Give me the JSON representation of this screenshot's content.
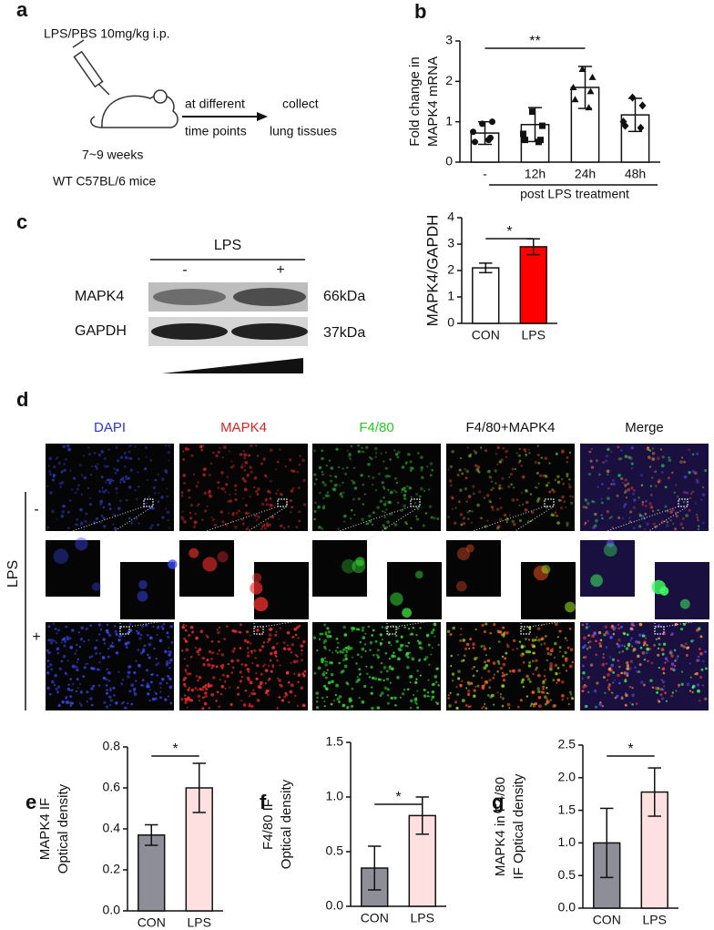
{
  "panel_labels": [
    "a",
    "b",
    "c",
    "d",
    "e",
    "f",
    "g"
  ],
  "schematic": {
    "injection": "LPS/PBS 10mg/kg i.p.",
    "arrow_top": "at different",
    "arrow_bottom": "time points",
    "collect_top": "collect",
    "collect_bottom": "lung tissues",
    "age": "7~9  weeks",
    "strain": "WT C57BL/6 mice"
  },
  "blot": {
    "treatment": "LPS",
    "lanes": [
      "-",
      "+"
    ],
    "proteins": [
      "MAPK4",
      "GAPDH"
    ],
    "sizes": [
      "66kDa",
      "37kDa"
    ]
  },
  "imaging": {
    "channels": [
      "DAPI",
      "MAPK4",
      "F4/80",
      "F4/80+MAPK4",
      "Merge"
    ],
    "row_label": "LPS",
    "rows": [
      "-",
      "+"
    ]
  },
  "chart_data": [
    {
      "type": "bar",
      "ylabel": [
        "Fold change in",
        "MAPK4 mRNA"
      ],
      "xlabel": "post LPS treatment",
      "categories": [
        "-",
        "12h",
        "24h",
        "48h"
      ],
      "values": [
        0.72,
        0.93,
        1.85,
        1.17
      ],
      "errors": [
        0.28,
        0.42,
        0.52,
        0.41
      ],
      "points": [
        [
          0.95,
          1.0,
          0.75,
          0.6,
          0.5,
          0.55
        ],
        [
          1.25,
          0.9,
          0.7,
          0.55,
          0.55,
          0.5
        ],
        [
          2.3,
          2.1,
          1.85,
          1.75,
          1.55,
          1.35
        ],
        [
          1.6,
          1.4,
          1.0,
          0.85,
          0.9
        ]
      ],
      "colors": [
        "#ffffff",
        "#ffffff",
        "#ffffff",
        "#ffffff"
      ],
      "ylim": [
        0,
        3
      ],
      "yticks": [
        0,
        1,
        2,
        3
      ],
      "significance": "**"
    },
    {
      "type": "bar",
      "ylabel": [
        "MAPK4/GAPDH"
      ],
      "categories": [
        "CON",
        "LPS"
      ],
      "values": [
        2.1,
        2.9
      ],
      "errors": [
        0.18,
        0.3
      ],
      "colors": [
        "#ffffff",
        "#ff0000"
      ],
      "ylim": [
        0,
        4
      ],
      "yticks": [
        0,
        1,
        2,
        3,
        4
      ],
      "significance": "*"
    },
    {
      "type": "bar",
      "ylabel": [
        "MAPK4 IF",
        "Optical density"
      ],
      "categories": [
        "CON",
        "LPS"
      ],
      "values": [
        0.37,
        0.6
      ],
      "errors": [
        0.05,
        0.12
      ],
      "colors": [
        "#8e8e98",
        "#ffe0e0"
      ],
      "ylim": [
        0,
        0.8
      ],
      "yticks": [
        {
          "value": 0,
          "label": "0.0"
        },
        0.2,
        0.4,
        0.6,
        0.8
      ],
      "significance": "*"
    },
    {
      "type": "bar",
      "ylabel": [
        "F4/80 IF",
        "Optical density"
      ],
      "categories": [
        "CON",
        "LPS"
      ],
      "values": [
        0.35,
        0.83
      ],
      "errors": [
        0.2,
        0.17
      ],
      "colors": [
        "#8e8e98",
        "#ffe0e0"
      ],
      "ylim": [
        0,
        1.5
      ],
      "yticks": [
        {
          "value": 0,
          "label": "0.0"
        },
        0.5,
        {
          "value": 1,
          "label": "1.0"
        },
        1.5
      ],
      "significance": "*"
    },
    {
      "type": "bar",
      "ylabel": [
        "MAPK4 in F4/80",
        "IF Optical density"
      ],
      "categories": [
        "CON",
        "LPS"
      ],
      "values": [
        1.0,
        1.78
      ],
      "errors": [
        0.53,
        0.37
      ],
      "colors": [
        "#8e8e98",
        "#ffe0e0"
      ],
      "ylim": [
        0,
        2.5
      ],
      "yticks": [
        {
          "value": 0,
          "label": "0.0"
        },
        0.5,
        {
          "value": 1,
          "label": "1.0"
        },
        1.5,
        {
          "value": 2,
          "label": "2.0"
        },
        2.5
      ],
      "significance": "*"
    }
  ]
}
